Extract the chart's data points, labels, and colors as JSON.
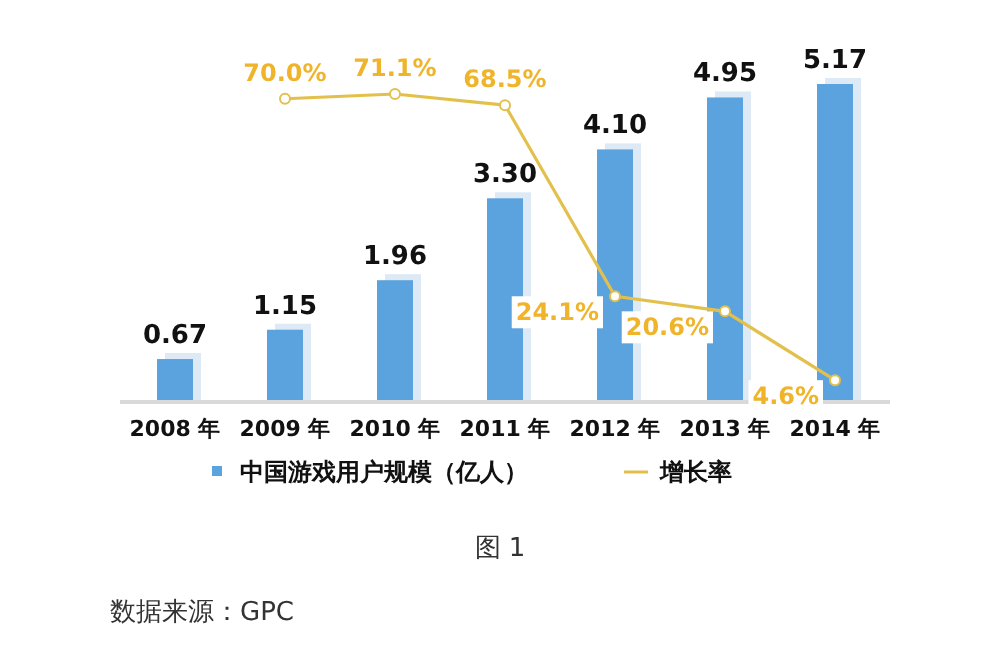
{
  "chart_data": {
    "type": "bar",
    "categories": [
      "2008 年",
      "2009 年",
      "2010 年",
      "2011 年",
      "2012 年",
      "2013 年",
      "2014 年"
    ],
    "series": [
      {
        "name": "中国游戏用户规模（亿人）",
        "color": "#5ba3df",
        "values": [
          0.67,
          1.15,
          1.96,
          3.3,
          4.1,
          4.95,
          5.17
        ],
        "value_labels": [
          "0.67",
          "1.15",
          "1.96",
          "3.30",
          "4.10",
          "4.95",
          "5.17"
        ]
      },
      {
        "name": "增长率",
        "type": "line",
        "axis": "y2",
        "color": "#e3c04c",
        "values": [
          null,
          70.0,
          71.1,
          68.5,
          24.1,
          20.6,
          4.6
        ],
        "value_labels": [
          null,
          "70.0%",
          "71.1%",
          "68.5%",
          "24.1%",
          "20.6%",
          "4.6%"
        ]
      }
    ],
    "marker": "circle",
    "legend": "bottom",
    "annotations": [
      "图 1",
      "数据来源：GPC"
    ]
  }
}
